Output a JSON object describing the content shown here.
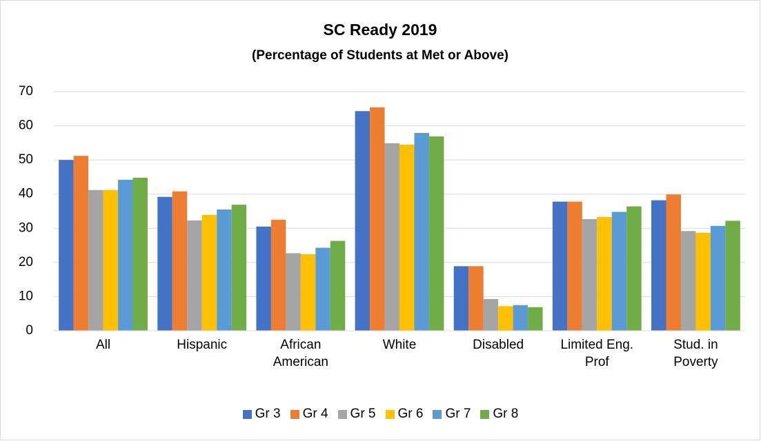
{
  "chart_data": {
    "type": "bar",
    "title": "SC Ready 2019",
    "subtitle": "(Percentage of Students at Met or Above)",
    "categories": [
      "All",
      "Hispanic",
      "African American",
      "White",
      "Disabled",
      "Limited Eng. Prof",
      "Stud. in Poverty"
    ],
    "series": [
      {
        "name": "Gr 3",
        "color": "#4472c4",
        "values": [
          50,
          39.2,
          30.5,
          64.3,
          18.9,
          37.8,
          38.2
        ]
      },
      {
        "name": "Gr 4",
        "color": "#ed7d31",
        "values": [
          51.2,
          40.8,
          32.5,
          65.4,
          18.9,
          37.8,
          39.9
        ]
      },
      {
        "name": "Gr 5",
        "color": "#a5a5a5",
        "values": [
          41.2,
          32.3,
          22.7,
          54.9,
          9.3,
          32.7,
          29.2
        ]
      },
      {
        "name": "Gr 6",
        "color": "#ffc000",
        "values": [
          41.2,
          33.9,
          22.4,
          54.5,
          7.2,
          33.3,
          28.7
        ]
      },
      {
        "name": "Gr 7",
        "color": "#5b9bd5",
        "values": [
          44.2,
          35.5,
          24.3,
          57.9,
          7.5,
          34.8,
          30.7
        ]
      },
      {
        "name": "Gr 8",
        "color": "#70ad47",
        "values": [
          44.8,
          36.9,
          26.3,
          56.9,
          6.9,
          36.4,
          32.2
        ]
      }
    ],
    "ylim": [
      0,
      70
    ],
    "yticks": [
      0,
      10,
      20,
      30,
      40,
      50,
      60,
      70
    ],
    "grid": true,
    "legend": "bottom"
  }
}
